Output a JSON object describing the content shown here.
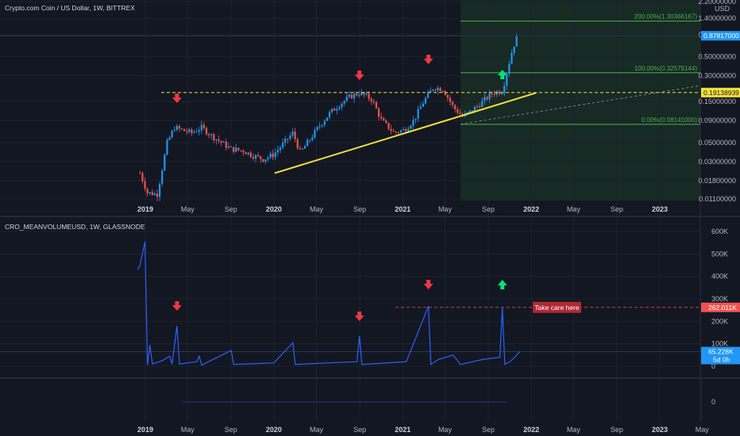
{
  "colors": {
    "background": "#131722",
    "grid": "#1e222d",
    "up": "#2196f3",
    "down": "#ef5350",
    "trend": "#f5e23a",
    "fib": "#4caf50",
    "volume_line": "#2962ff",
    "arrow_down": "#f23645",
    "arrow_up": "#00e676",
    "alert": "#b22833"
  },
  "price_panel": {
    "title": "Crypto.com Coin / US Dollar, 1W, BITTREX",
    "currency": "USD",
    "y_ticks": [
      "2.20000000",
      "1.40000000",
      "0.90000000",
      "0.50000000",
      "0.30000000",
      "0.15000000",
      "0.09000000",
      "0.05000000",
      "0.03000000",
      "0.01800000",
      "0.01100000"
    ],
    "last_price_tag": "0.87817000",
    "resistance_tag": "0.19138939",
    "fib_labels": [
      {
        "text": "200.00%(1.30366167)"
      },
      {
        "text": "100.00%(0.32579144)"
      },
      {
        "text": "0.00%(0.08141000)"
      }
    ]
  },
  "volume_panel": {
    "title": "CRO_MEANVOLUMEUSD, 1W, GLASSNODE",
    "y_ticks": [
      "600K",
      "500K",
      "400K",
      "300K",
      "200K",
      "100K",
      "0"
    ],
    "last_tag": "65.228K",
    "last_tag_sub": "5d 0h",
    "level_tag": "262.011K",
    "note": "Take care here"
  },
  "bottom_panel": {
    "y_tick": "0"
  },
  "x_axis": {
    "labels": [
      "2019",
      "May",
      "Sep",
      "2020",
      "May",
      "Sep",
      "2021",
      "May",
      "Sep",
      "2022",
      "May",
      "Sep",
      "2023"
    ],
    "bottom_labels": [
      "2019",
      "May",
      "Sep",
      "2020",
      "May",
      "Sep",
      "2021",
      "May",
      "Sep",
      "2022",
      "May",
      "Sep",
      "2023",
      "May"
    ]
  },
  "chart_data": [
    {
      "type": "candlestick",
      "title": "Crypto.com Coin / US Dollar, 1W, BITTREX",
      "ylabel": "USD",
      "log_scale": true,
      "ylim": [
        0.011,
        2.2
      ],
      "x_range": [
        "2018-12",
        "2023-06"
      ],
      "series": [
        {
          "name": "CRO/USD",
          "points": [
            [
              "2018-12-17",
              0.022
            ],
            [
              "2019-01-07",
              0.013
            ],
            [
              "2019-02-04",
              0.0125
            ],
            [
              "2019-03-04",
              0.05
            ],
            [
              "2019-03-25",
              0.075
            ],
            [
              "2019-04-15",
              0.07
            ],
            [
              "2019-05-13",
              0.065
            ],
            [
              "2019-06-10",
              0.075
            ],
            [
              "2019-07-08",
              0.06
            ],
            [
              "2019-08-05",
              0.05
            ],
            [
              "2019-09-02",
              0.042
            ],
            [
              "2019-10-07",
              0.04
            ],
            [
              "2019-11-04",
              0.035
            ],
            [
              "2019-12-02",
              0.032
            ],
            [
              "2019-12-30",
              0.036
            ],
            [
              "2020-01-27",
              0.048
            ],
            [
              "2020-02-24",
              0.065
            ],
            [
              "2020-03-16",
              0.038
            ],
            [
              "2020-04-13",
              0.055
            ],
            [
              "2020-05-11",
              0.08
            ],
            [
              "2020-06-08",
              0.11
            ],
            [
              "2020-07-06",
              0.14
            ],
            [
              "2020-08-03",
              0.17
            ],
            [
              "2020-08-31",
              0.19
            ],
            [
              "2020-10-05",
              0.16
            ],
            [
              "2020-11-02",
              0.09
            ],
            [
              "2020-12-07",
              0.065
            ],
            [
              "2021-01-04",
              0.07
            ],
            [
              "2021-02-01",
              0.09
            ],
            [
              "2021-03-01",
              0.15
            ],
            [
              "2021-03-29",
              0.22
            ],
            [
              "2021-04-26",
              0.21
            ],
            [
              "2021-05-24",
              0.13
            ],
            [
              "2021-06-21",
              0.1
            ],
            [
              "2021-07-19",
              0.12
            ],
            [
              "2021-08-16",
              0.15
            ],
            [
              "2021-09-13",
              0.19
            ],
            [
              "2021-10-11",
              0.2
            ],
            [
              "2021-10-25",
              0.35
            ],
            [
              "2021-11-08",
              0.6
            ],
            [
              "2021-11-22",
              0.87817
            ]
          ]
        }
      ],
      "horizontal_levels": [
        {
          "value": 0.19138939
        },
        {
          "value": 1.30366167
        },
        {
          "value": 0.32579144
        },
        {
          "value": 0.08141
        }
      ],
      "trendline": [
        [
          "2020-01-01",
          0.022
        ],
        [
          "2022-01-15",
          0.19
        ]
      ],
      "annotations": [
        {
          "type": "arrow-down",
          "x": "2019-04-01"
        },
        {
          "type": "arrow-down",
          "x": "2020-08-31"
        },
        {
          "type": "arrow-down",
          "x": "2021-03-15"
        },
        {
          "type": "arrow-up",
          "x": "2021-10-11"
        }
      ]
    },
    {
      "type": "line",
      "title": "CRO_MEANVOLUMEUSD, 1W, GLASSNODE",
      "ylim": [
        0,
        600000
      ],
      "x_range": [
        "2018-12",
        "2023-06"
      ],
      "series": [
        {
          "name": "CRO_MEANVOLUMEUSD",
          "points": [
            [
              "2018-12-10",
              430000
            ],
            [
              "2018-12-17",
              450000
            ],
            [
              "2018-12-31",
              555000
            ],
            [
              "2019-01-07",
              5000
            ],
            [
              "2019-01-14",
              95000
            ],
            [
              "2019-01-21",
              10000
            ],
            [
              "2019-02-18",
              25000
            ],
            [
              "2019-03-11",
              45000
            ],
            [
              "2019-03-18",
              10000
            ],
            [
              "2019-04-01",
              180000
            ],
            [
              "2019-04-08",
              10000
            ],
            [
              "2019-05-27",
              20000
            ],
            [
              "2019-06-03",
              45000
            ],
            [
              "2019-06-10",
              5000
            ],
            [
              "2019-09-02",
              70000
            ],
            [
              "2019-09-09",
              8000
            ],
            [
              "2020-01-01",
              15000
            ],
            [
              "2020-02-24",
              105000
            ],
            [
              "2020-03-02",
              8000
            ],
            [
              "2020-06-01",
              15000
            ],
            [
              "2020-08-24",
              20000
            ],
            [
              "2020-08-31",
              135000
            ],
            [
              "2020-09-07",
              8000
            ],
            [
              "2021-01-11",
              20000
            ],
            [
              "2021-03-15",
              268000
            ],
            [
              "2021-03-22",
              8000
            ],
            [
              "2021-04-12",
              30000
            ],
            [
              "2021-05-24",
              50000
            ],
            [
              "2021-06-14",
              8000
            ],
            [
              "2021-08-16",
              30000
            ],
            [
              "2021-10-04",
              40000
            ],
            [
              "2021-10-11",
              262011
            ],
            [
              "2021-10-18",
              8000
            ],
            [
              "2021-11-01",
              20000
            ],
            [
              "2021-11-15",
              40000
            ],
            [
              "2021-11-29",
              65228
            ]
          ]
        }
      ],
      "horizontal_levels": [
        {
          "value": 262011
        }
      ],
      "annotations": [
        {
          "type": "arrow-down",
          "x": "2019-04-01"
        },
        {
          "type": "arrow-down",
          "x": "2020-08-31"
        },
        {
          "type": "arrow-down",
          "x": "2021-03-15"
        },
        {
          "type": "arrow-up",
          "x": "2021-10-11"
        },
        {
          "type": "label",
          "text": "Take care here"
        }
      ]
    }
  ]
}
